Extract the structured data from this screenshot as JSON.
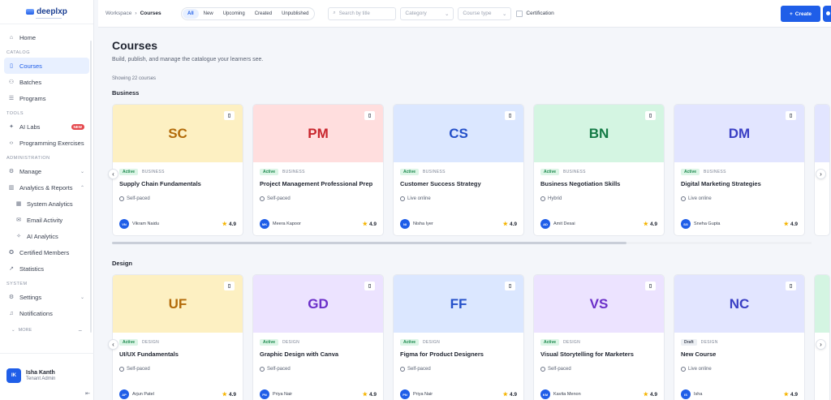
{
  "brand": {
    "name": "deeplxp"
  },
  "sidebar": {
    "items": [
      {
        "label": "Home",
        "icon": "home-icon",
        "glyph": "⌂"
      },
      {
        "section": "CATALOG"
      },
      {
        "label": "Courses",
        "icon": "book-icon",
        "glyph": "▯",
        "active": true
      },
      {
        "label": "Batches",
        "icon": "users-icon",
        "glyph": "⚇"
      },
      {
        "label": "Programs",
        "icon": "list-icon",
        "glyph": "☰"
      },
      {
        "section": "TOOLS"
      },
      {
        "label": "AI Labs",
        "icon": "sparkle-icon",
        "glyph": "✦",
        "badge": "NEW"
      },
      {
        "label": "Programming Exercises",
        "icon": "code-icon",
        "glyph": "‹›"
      },
      {
        "section": "ADMINISTRATION"
      },
      {
        "label": "Manage",
        "icon": "gear-icon",
        "glyph": "⚙",
        "chevron": "⌄"
      },
      {
        "label": "Analytics & Reports",
        "icon": "chart-icon",
        "glyph": "▥",
        "chevron": "⌃"
      },
      {
        "label": "System Analytics",
        "icon": "bar-chart-icon",
        "glyph": "▦",
        "sub": true
      },
      {
        "label": "Email Activity",
        "icon": "mail-icon",
        "glyph": "✉",
        "sub": true
      },
      {
        "label": "AI Analytics",
        "icon": "sparkle-icon",
        "glyph": "✧",
        "sub": true
      },
      {
        "label": "Certified Members",
        "icon": "badge-icon",
        "glyph": "✪"
      },
      {
        "label": "Statistics",
        "icon": "trend-icon",
        "glyph": "↗"
      },
      {
        "section": "SYSTEM"
      },
      {
        "label": "Settings",
        "icon": "gear-icon",
        "glyph": "⚙",
        "chevron": "⌄"
      },
      {
        "label": "Notifications",
        "icon": "bell-icon",
        "glyph": "♫"
      }
    ],
    "more_label": "MORE",
    "user": {
      "initials": "IK",
      "name": "Isha Kanth",
      "role": "Tenant Admin"
    }
  },
  "topbar": {
    "breadcrumb": [
      "Workspace",
      "Courses"
    ],
    "filters": [
      "All",
      "New",
      "Upcoming",
      "Created",
      "Unpublished"
    ],
    "active_filter": "All",
    "search_placeholder": "Search by title",
    "category_placeholder": "Category",
    "course_type_placeholder": "Course type",
    "certification_label": "Certification",
    "create_label": "Create"
  },
  "main": {
    "title": "Courses",
    "subtitle": "Build, publish, and manage the catalogue your learners see.",
    "showing": "Showing 22 courses",
    "sections": [
      {
        "name": "Business",
        "courses": [
          {
            "initials": "SC",
            "bg": "#fdf0c2",
            "fg": "#b36b0a",
            "status": "Active",
            "category": "BUSINESS",
            "title": "Supply Chain Fundamentals",
            "pace": "Self-paced",
            "inst_initials": "VN",
            "instructor": "Vikram Naidu",
            "rating": "4.9"
          },
          {
            "initials": "PM",
            "bg": "#ffdede",
            "fg": "#c8262d",
            "status": "Active",
            "category": "BUSINESS",
            "title": "Project Management Professional Prep",
            "pace": "Self-paced",
            "inst_initials": "MK",
            "instructor": "Meera Kapoor",
            "rating": "4.9"
          },
          {
            "initials": "CS",
            "bg": "#dbe7ff",
            "fg": "#2450c9",
            "status": "Active",
            "category": "BUSINESS",
            "title": "Customer Success Strategy",
            "pace": "Live online",
            "inst_initials": "NI",
            "instructor": "Nisha Iyer",
            "rating": "4.9"
          },
          {
            "initials": "BN",
            "bg": "#d4f5e2",
            "fg": "#137a45",
            "status": "Active",
            "category": "BUSINESS",
            "title": "Business Negotiation Skills",
            "pace": "Hybrid",
            "inst_initials": "AD",
            "instructor": "Amit Desai",
            "rating": "4.9"
          },
          {
            "initials": "DM",
            "bg": "#e2e5ff",
            "fg": "#3a3fc4",
            "status": "Active",
            "category": "BUSINESS",
            "title": "Digital Marketing Strategies",
            "pace": "Live online",
            "inst_initials": "SG",
            "instructor": "Sneha Gupta",
            "rating": "4.9"
          }
        ],
        "peek_bg": "#e2e5ff"
      },
      {
        "name": "Design",
        "courses": [
          {
            "initials": "UF",
            "bg": "#fdf0c2",
            "fg": "#b36b0a",
            "status": "Active",
            "category": "DESIGN",
            "title": "UI/UX Fundamentals",
            "pace": "Self-paced",
            "inst_initials": "AP",
            "instructor": "Arjun Patel",
            "rating": "4.9"
          },
          {
            "initials": "GD",
            "bg": "#ece3ff",
            "fg": "#6b2fc9",
            "status": "Active",
            "category": "DESIGN",
            "title": "Graphic Design with Canva",
            "pace": "Self-paced",
            "inst_initials": "PN",
            "instructor": "Priya Nair",
            "rating": "4.9"
          },
          {
            "initials": "FF",
            "bg": "#dbe7ff",
            "fg": "#2450c9",
            "status": "Active",
            "category": "DESIGN",
            "title": "Figma for Product Designers",
            "pace": "Self-paced",
            "inst_initials": "PN",
            "instructor": "Priya Nair",
            "rating": "4.9"
          },
          {
            "initials": "VS",
            "bg": "#ece3ff",
            "fg": "#6b2fc9",
            "status": "Active",
            "category": "DESIGN",
            "title": "Visual Storytelling for Marketers",
            "pace": "Self-paced",
            "inst_initials": "KM",
            "instructor": "Kavita Menon",
            "rating": "4.9"
          },
          {
            "initials": "NC",
            "bg": "#e2e5ff",
            "fg": "#3a3fc4",
            "status": "Draft",
            "category": "DESIGN",
            "title": "New Course",
            "pace": "Live online",
            "inst_initials": "IS",
            "instructor": "Isha",
            "rating": "4.9"
          }
        ],
        "peek_bg": "#d4f5e2"
      }
    ]
  }
}
